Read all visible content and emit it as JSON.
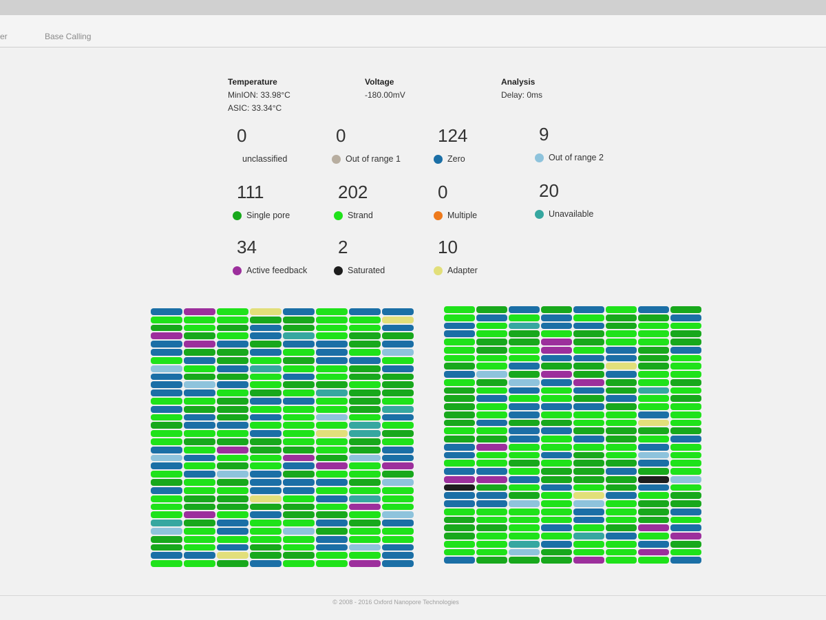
{
  "tabs": [
    {
      "label": "er"
    },
    {
      "label": "Base Calling"
    }
  ],
  "temperature": {
    "title": "Temperature",
    "minion": "MinION: 33.98°C",
    "asic": "ASIC: 33.34°C"
  },
  "voltage": {
    "title": "Voltage",
    "value": "-180.00mV"
  },
  "analysis": {
    "title": "Analysis",
    "delay": "Delay: 0ms"
  },
  "stats": [
    {
      "value": "0",
      "label": "unclassified",
      "color": ""
    },
    {
      "value": "0",
      "label": "Out of range 1",
      "color": "#b8aea0"
    },
    {
      "value": "124",
      "label": "Zero",
      "color": "#1b6fa6"
    },
    {
      "value": "9",
      "label": "Out of range 2",
      "color": "#8ec3dc"
    },
    {
      "value": "111",
      "label": "Single pore",
      "color": "#18a81c"
    },
    {
      "value": "202",
      "label": "Strand",
      "color": "#1fe21a"
    },
    {
      "value": "0",
      "label": "Multiple",
      "color": "#ee7a1c"
    },
    {
      "value": "20",
      "label": "Unavailable",
      "color": "#36a7a0"
    },
    {
      "value": "34",
      "label": "Active feedback",
      "color": "#9c2f9c"
    },
    {
      "value": "2",
      "label": "Saturated",
      "color": "#1d1d1d"
    },
    {
      "value": "10",
      "label": "Adapter",
      "color": "#e2df7a"
    }
  ],
  "footer": "© 2008 - 2016 Oxford Nanopore Technologies"
}
